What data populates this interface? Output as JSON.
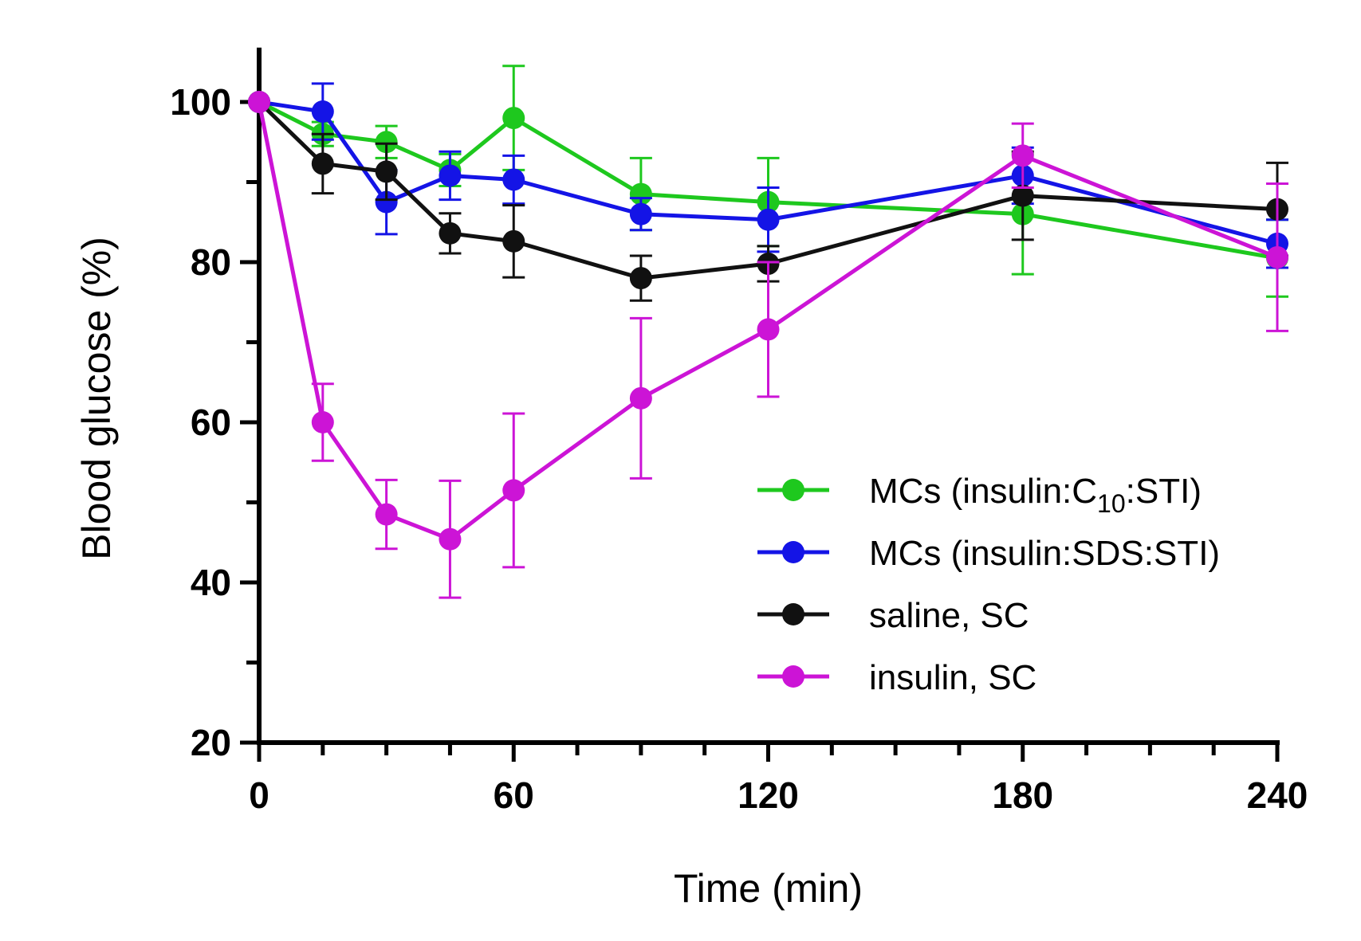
{
  "chart_data": {
    "type": "line",
    "title": "",
    "xlabel": "Time (min)",
    "ylabel": "Blood glucose (%)",
    "xlim": [
      0,
      240
    ],
    "ylim": [
      20,
      105
    ],
    "x_ticks": [
      "0",
      "60",
      "120",
      "180",
      "240"
    ],
    "y_ticks": [
      "20",
      "40",
      "60",
      "80",
      "100"
    ],
    "legend_position": "lower-right",
    "series": [
      {
        "name": "MCs (insulin:C10:STI)",
        "label_main": "MCs (insulin:C",
        "label_sub": "10",
        "label_tail": ":STI)",
        "color": "#1ec81e",
        "x": [
          0,
          15,
          30,
          45,
          60,
          90,
          120,
          180,
          240
        ],
        "values": [
          100,
          96,
          95,
          91.5,
          98,
          88.5,
          87.5,
          86,
          80.5
        ],
        "errors": [
          0,
          1.5,
          2,
          2,
          6.5,
          4.5,
          5.5,
          7.5,
          4.8
        ]
      },
      {
        "name": "MCs (insulin:SDS:STI)",
        "label_main": "MCs (insulin:SDS:STI)",
        "color": "#1414e6",
        "x": [
          0,
          15,
          30,
          45,
          60,
          90,
          120,
          180,
          240
        ],
        "values": [
          100,
          98.8,
          87.5,
          90.8,
          90.3,
          86,
          85.3,
          90.8,
          82.3
        ],
        "errors": [
          0,
          3.5,
          4,
          3,
          3,
          2,
          4,
          3.5,
          3
        ]
      },
      {
        "name": "saline, SC",
        "label_main": "saline, SC",
        "color": "#111111",
        "x": [
          0,
          15,
          30,
          45,
          60,
          90,
          120,
          180,
          240
        ],
        "values": [
          100,
          92.3,
          91.3,
          83.6,
          82.6,
          78,
          79.8,
          88.3,
          86.6
        ],
        "errors": [
          0,
          3.7,
          3.5,
          2.5,
          4.5,
          2.8,
          2.2,
          5.5,
          5.8
        ]
      },
      {
        "name": "insulin, SC",
        "label_main": "insulin, SC",
        "color": "#cc14d6",
        "x": [
          0,
          15,
          30,
          45,
          60,
          90,
          120,
          180,
          240
        ],
        "values": [
          100,
          60,
          48.5,
          45.4,
          51.5,
          63,
          71.6,
          93.3,
          80.6
        ],
        "errors": [
          0,
          4.8,
          4.3,
          7.3,
          9.6,
          10,
          8.4,
          4,
          9.2
        ]
      }
    ]
  }
}
